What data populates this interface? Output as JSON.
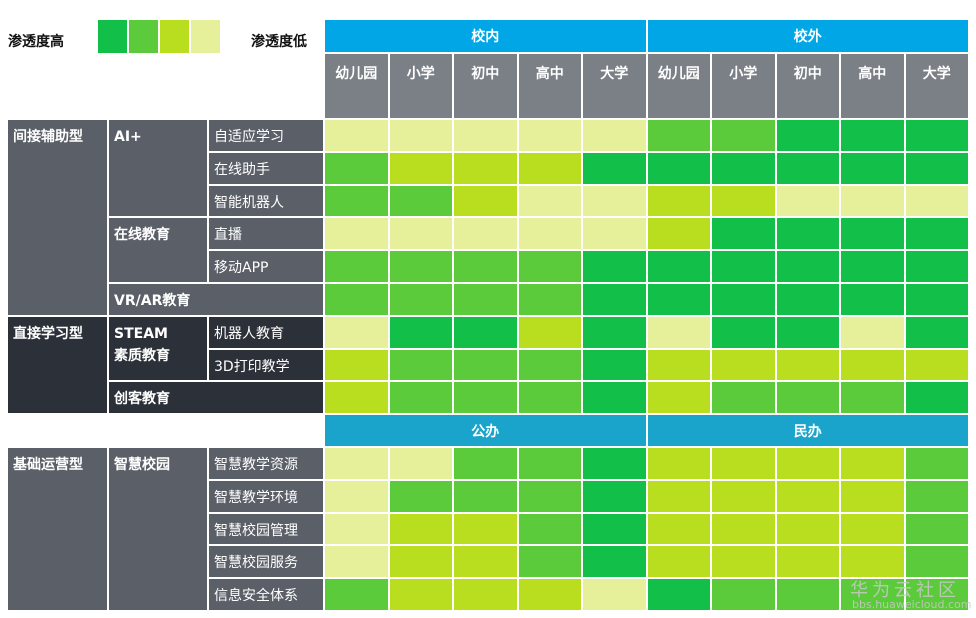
{
  "legend": {
    "high": "渗透度高",
    "low": "渗透度低",
    "colors": [
      "#12bf48",
      "#5ccb3b",
      "#b9dd1f",
      "#e6f09b"
    ]
  },
  "column_groups": [
    "校内",
    "校外"
  ],
  "column_levels": [
    "幼儿园",
    "小学",
    "初中",
    "高中",
    "大学"
  ],
  "categories": [
    {
      "label": "间接辅助型",
      "color": "#5b6068",
      "subgroups": [
        {
          "label": "AI+",
          "items": [
            {
              "label": "自适应学习",
              "cells": [
                "#e6f09b",
                "#e6f09b",
                "#e6f09b",
                "#e6f09b",
                "#e6f09b",
                "#5ccb3b",
                "#5ccb3b",
                "#12bf48",
                "#12bf48",
                "#12bf48"
              ]
            },
            {
              "label": "在线助手",
              "cells": [
                "#5ccb3b",
                "#b9dd1f",
                "#b9dd1f",
                "#b9dd1f",
                "#12bf48",
                "#12bf48",
                "#12bf48",
                "#12bf48",
                "#12bf48",
                "#12bf48"
              ]
            },
            {
              "label": "智能机器人",
              "cells": [
                "#5ccb3b",
                "#5ccb3b",
                "#b9dd1f",
                "#e6f09b",
                "#e6f09b",
                "#b9dd1f",
                "#b9dd1f",
                "#e6f09b",
                "#e6f09b",
                "#e6f09b"
              ]
            }
          ]
        },
        {
          "label": "在线教育",
          "items": [
            {
              "label": "直播",
              "cells": [
                "#e6f09b",
                "#e6f09b",
                "#e6f09b",
                "#e6f09b",
                "#e6f09b",
                "#b9dd1f",
                "#12bf48",
                "#12bf48",
                "#12bf48",
                "#12bf48"
              ]
            },
            {
              "label": "移动APP",
              "cells": [
                "#5ccb3b",
                "#5ccb3b",
                "#5ccb3b",
                "#5ccb3b",
                "#12bf48",
                "#12bf48",
                "#12bf48",
                "#12bf48",
                "#12bf48",
                "#12bf48"
              ]
            }
          ]
        },
        {
          "label": "VR/AR教育",
          "cells": [
            "#5ccb3b",
            "#5ccb3b",
            "#5ccb3b",
            "#5ccb3b",
            "#12bf48",
            "#12bf48",
            "#12bf48",
            "#12bf48",
            "#12bf48",
            "#12bf48"
          ]
        }
      ]
    },
    {
      "label": "直接学习型",
      "color": "#2c3038",
      "subgroups": [
        {
          "label": "STEAM\n素质教育",
          "items": [
            {
              "label": "机器人教育",
              "cells": [
                "#e6f09b",
                "#12bf48",
                "#12bf48",
                "#b9dd1f",
                "#12bf48",
                "#e6f09b",
                "#12bf48",
                "#12bf48",
                "#e6f09b",
                "#12bf48"
              ]
            },
            {
              "label": "3D打印教学",
              "cells": [
                "#b9dd1f",
                "#5ccb3b",
                "#5ccb3b",
                "#5ccb3b",
                "#12bf48",
                "#b9dd1f",
                "#b9dd1f",
                "#b9dd1f",
                "#b9dd1f",
                "#b9dd1f"
              ]
            }
          ]
        },
        {
          "label": "创客教育",
          "cells": [
            "#b9dd1f",
            "#5ccb3b",
            "#5ccb3b",
            "#5ccb3b",
            "#12bf48",
            "#b9dd1f",
            "#5ccb3b",
            "#5ccb3b",
            "#5ccb3b",
            "#12bf48"
          ]
        }
      ]
    },
    {
      "label": "基础运营型",
      "color": "#5b6068",
      "header": [
        "公办",
        "民办"
      ],
      "subgroups": [
        {
          "label": "智慧校园",
          "items": [
            {
              "label": "智慧教学资源",
              "cells": [
                "#e6f09b",
                "#e6f09b",
                "#5ccb3b",
                "#5ccb3b",
                "#12bf48",
                "#b9dd1f",
                "#b9dd1f",
                "#b9dd1f",
                "#b9dd1f",
                "#5ccb3b"
              ]
            },
            {
              "label": "智慧教学环境",
              "cells": [
                "#e6f09b",
                "#5ccb3b",
                "#5ccb3b",
                "#5ccb3b",
                "#12bf48",
                "#b9dd1f",
                "#b9dd1f",
                "#b9dd1f",
                "#b9dd1f",
                "#5ccb3b"
              ]
            },
            {
              "label": "智慧校园管理",
              "cells": [
                "#e6f09b",
                "#b9dd1f",
                "#b9dd1f",
                "#5ccb3b",
                "#12bf48",
                "#b9dd1f",
                "#b9dd1f",
                "#b9dd1f",
                "#b9dd1f",
                "#5ccb3b"
              ]
            },
            {
              "label": "智慧校园服务",
              "cells": [
                "#e6f09b",
                "#b9dd1f",
                "#b9dd1f",
                "#5ccb3b",
                "#12bf48",
                "#b9dd1f",
                "#b9dd1f",
                "#b9dd1f",
                "#b9dd1f",
                "#5ccb3b"
              ]
            },
            {
              "label": "信息安全体系",
              "cells": [
                "#5ccb3b",
                "#b9dd1f",
                "#b9dd1f",
                "#b9dd1f",
                "#e6f09b",
                "#12bf48",
                "#5ccb3b",
                "#5ccb3b",
                "#5ccb3b",
                "#5ccb3b"
              ]
            }
          ]
        }
      ]
    }
  ],
  "watermark": {
    "title": "华为云社区",
    "url": "bbs.huaweicloud.com"
  }
}
